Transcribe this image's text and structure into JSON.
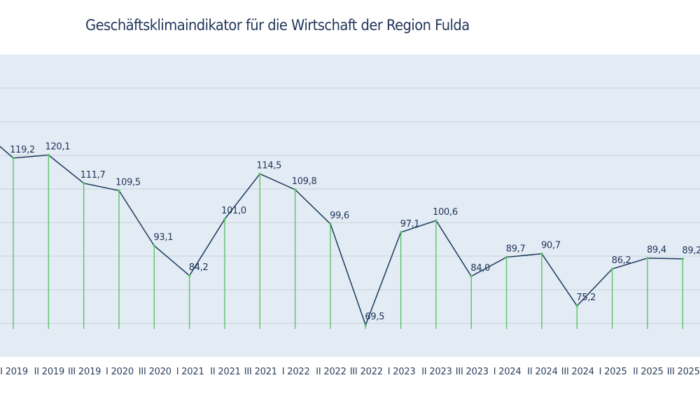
{
  "chart_data": {
    "type": "line",
    "title": "Geschäftsklimaindikator für die Wirtschaft der Region Fulda",
    "xlabel": "",
    "ylabel": "",
    "ylim": [
      60,
      150
    ],
    "grid": true,
    "legend": "none",
    "categories": [
      "I 2019",
      "II 2019",
      "III 2019",
      "I 2020",
      "III 2020",
      "I 2021",
      "II 2021",
      "III 2021",
      "I 2022",
      "II 2022",
      "III 2022",
      "I 2023",
      "II 2023",
      "III 2023",
      "I 2024",
      "II 2024",
      "III 2024",
      "I 2025",
      "II 2025",
      "III 2025"
    ],
    "values": [
      119.2,
      120.1,
      111.7,
      109.5,
      93.1,
      84.2,
      101.0,
      114.5,
      109.8,
      99.6,
      69.5,
      97.1,
      100.6,
      84.0,
      89.7,
      90.7,
      75.2,
      86.2,
      89.4,
      89.2
    ],
    "labels": [
      "119,2",
      "120,1",
      "111,7",
      "109,5",
      "93,1",
      "84,2",
      "101,0",
      "114,5",
      "109,8",
      "99,6",
      "69,5",
      "97,1",
      "100,6",
      "84,0",
      "89,7",
      "90,7",
      "75,2",
      "86,2",
      "89,4",
      "89,2"
    ],
    "line_color": "#1b3a5c",
    "stem_color_top": "#5cc36a",
    "stem_color_bottom": "#1b3a5c",
    "plot_background": "#e3ebf4",
    "grid_color": "#cdd6e0"
  }
}
